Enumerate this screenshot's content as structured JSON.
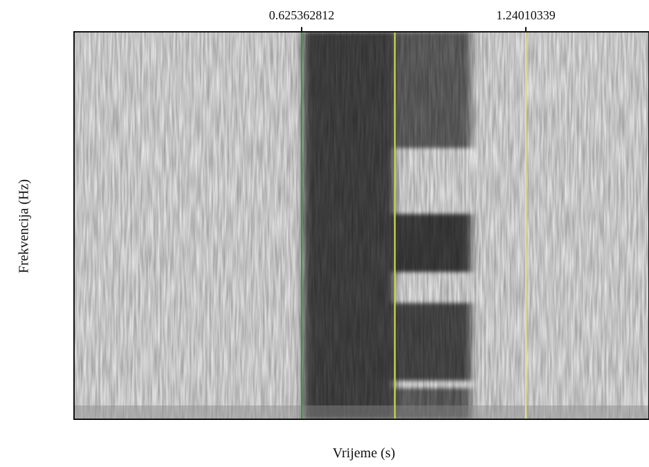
{
  "chart_data": {
    "type": "heatmap",
    "subtype": "spectrogram",
    "colormap": "grayscale (darker = more energy)",
    "xlabel": "Vrijeme (s)",
    "ylabel": "Frekvencija (Hz)",
    "top_ticks": [
      "0.625362812",
      "1.24010339"
    ],
    "cursors": [
      {
        "time": 0.625362812,
        "color": "#2e9a3a",
        "label": "0.625362812"
      },
      {
        "time": 0.88,
        "color": "#2e9a3a",
        "label": ""
      },
      {
        "time": 0.881,
        "color": "#e8d84a",
        "label": ""
      },
      {
        "time": 1.24010339,
        "color": "#e8e27a",
        "label": "1.24010339"
      }
    ],
    "energy_regions": [
      {
        "t_start": 0.63,
        "t_end": 0.88,
        "f_start": 0.0,
        "f_end": 1.0,
        "intensity": 0.72
      },
      {
        "t_start": 0.88,
        "t_end": 1.09,
        "f_start": 0.7,
        "f_end": 1.0,
        "intensity": 0.6
      },
      {
        "t_start": 0.88,
        "t_end": 1.09,
        "f_start": 0.38,
        "f_end": 0.53,
        "intensity": 0.75
      },
      {
        "t_start": 0.88,
        "t_end": 1.09,
        "f_start": 0.1,
        "f_end": 0.3,
        "intensity": 0.7
      },
      {
        "t_start": 0.88,
        "t_end": 1.09,
        "f_start": 0.0,
        "f_end": 0.08,
        "intensity": 0.6
      }
    ]
  }
}
